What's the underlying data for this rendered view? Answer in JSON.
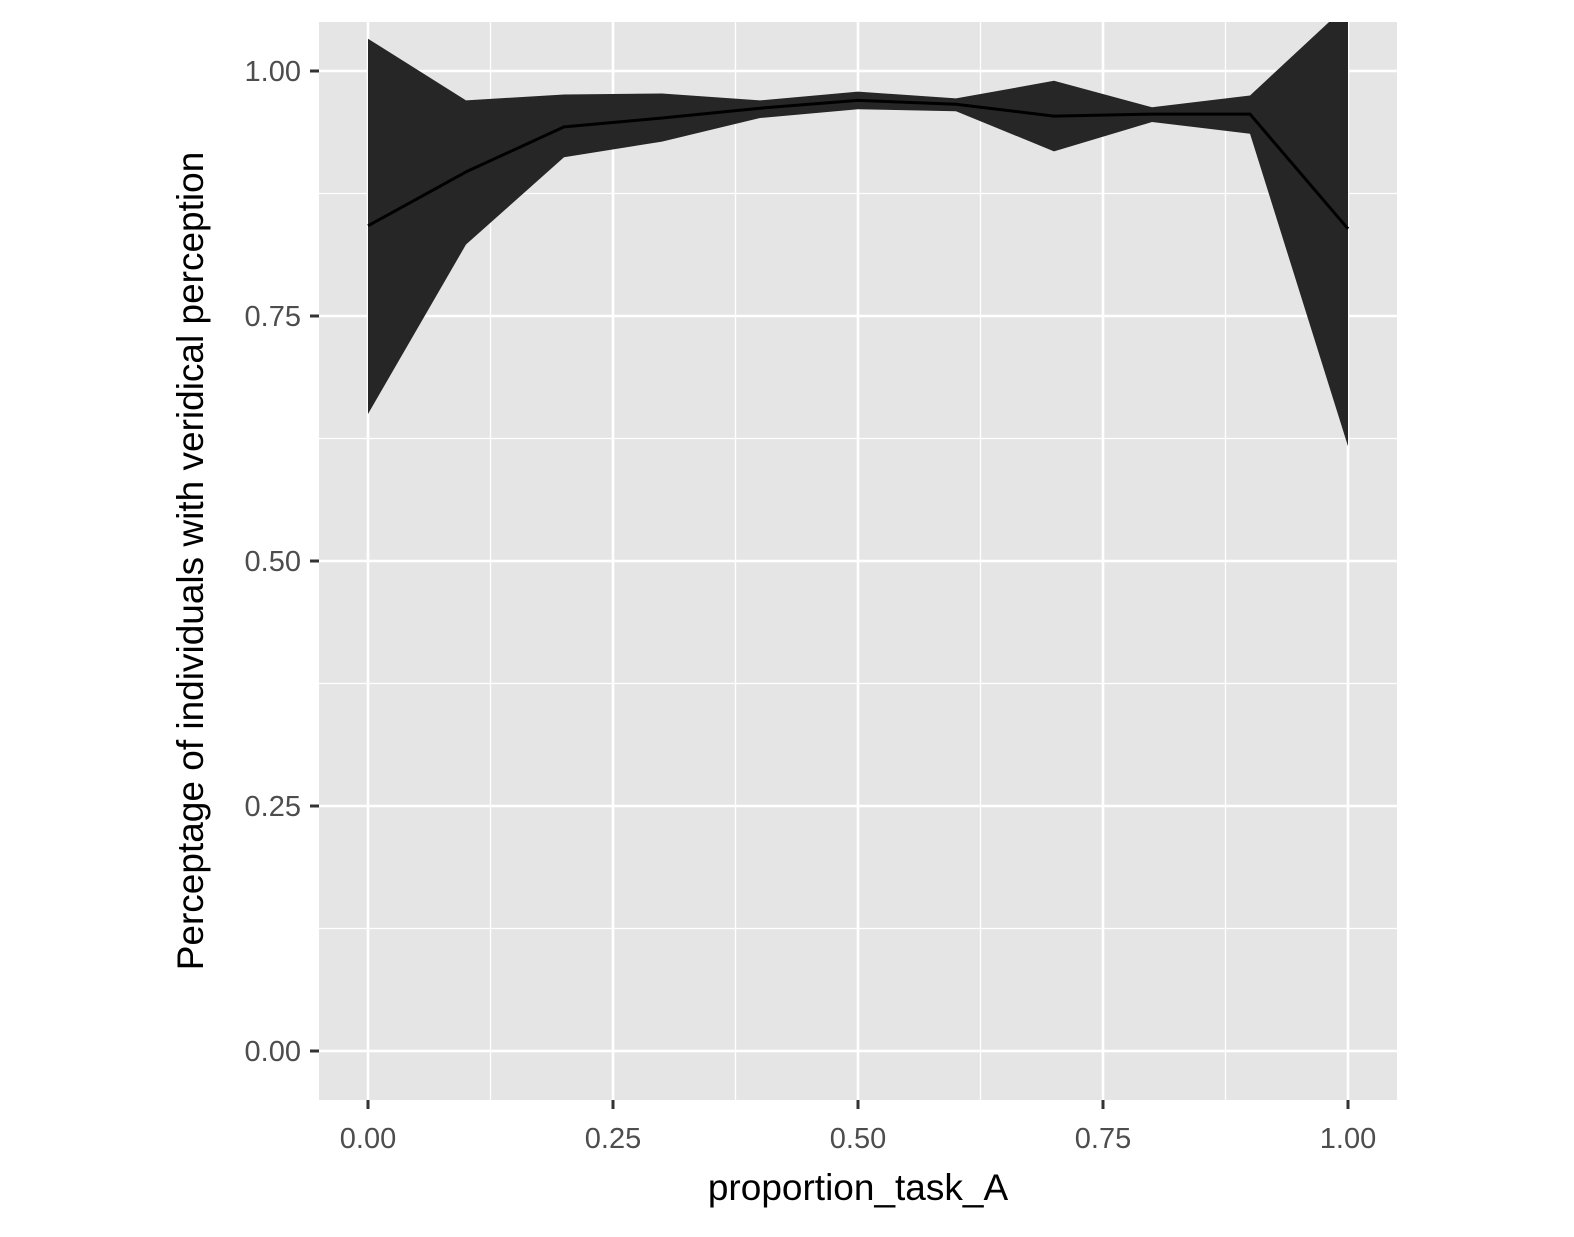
{
  "chart_data": {
    "type": "area",
    "title": "",
    "xlabel": "proportion_task_A",
    "ylabel": "Perceptage of individuals with veridical perception",
    "xlim": [
      -0.05,
      1.05
    ],
    "ylim": [
      -0.05,
      1.05
    ],
    "x_ticks": [
      0.0,
      0.25,
      0.5,
      0.75,
      1.0
    ],
    "x_tick_labels": [
      "0.00",
      "0.25",
      "0.50",
      "0.75",
      "1.00"
    ],
    "y_ticks": [
      0.0,
      0.25,
      0.5,
      0.75,
      1.0
    ],
    "y_tick_labels": [
      "0.00",
      "0.25",
      "0.50",
      "0.75",
      "1.00"
    ],
    "grid": true,
    "legend": "none",
    "x": [
      0.0,
      0.1,
      0.2,
      0.3,
      0.4,
      0.5,
      0.6,
      0.7,
      0.8,
      0.9,
      1.0
    ],
    "series": [
      {
        "values": [
          0.842,
          0.897,
          0.943,
          0.952,
          0.962,
          0.97,
          0.966,
          0.954,
          0.956,
          0.956,
          0.839
        ],
        "lower": [
          0.65,
          0.823,
          0.912,
          0.928,
          0.952,
          0.961,
          0.959,
          0.918,
          0.948,
          0.936,
          0.617
        ],
        "upper": [
          1.033,
          0.97,
          0.976,
          0.977,
          0.97,
          0.979,
          0.972,
          0.99,
          0.963,
          0.975,
          1.068
        ]
      }
    ],
    "colors": {
      "panel": "#e5e5e5",
      "grid": "#ffffff",
      "ribbon": "#262626",
      "line": "#000000",
      "tick": "#333333"
    }
  }
}
